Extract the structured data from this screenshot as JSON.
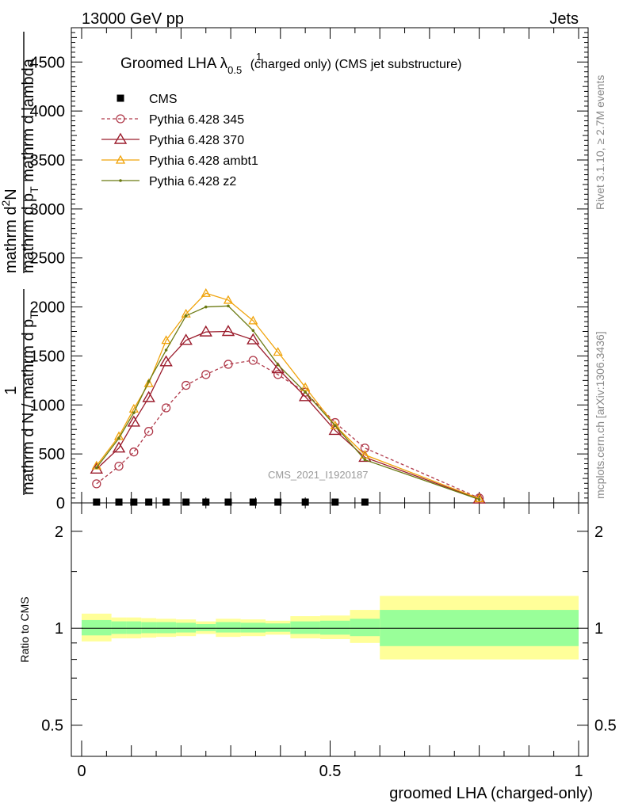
{
  "header": {
    "left": "13000 GeV pp",
    "right": "Jets"
  },
  "side_labels": {
    "rivet": "Rivet 3.1.10, ≥ 2.7M events",
    "mcplots": "mcplots.cern.ch [arXiv:1306.3436]"
  },
  "watermark": "CMS_2021_I1920187",
  "plot_title": {
    "main": "Groomed LHA λ",
    "sup": "1",
    "sub": "0.5",
    "rest": " (charged only) (CMS jet substructure)"
  },
  "y_axis_label": {
    "fraction_top": "1",
    "fraction_bottom": "mathrm d N / mathrm d p",
    "fraction_bottom_sub": "T",
    "numerator": "mathrm d",
    "numerator_sup": "2",
    "numerator_rest": "N",
    "denominator": "mathrm d p",
    "denominator_sub": "T",
    "denominator_rest": " mathrm d lambda"
  },
  "ratio_ylabel": "Ratio to CMS",
  "xlabel": "groomed LHA (charged-only)",
  "colors": {
    "cms": "#000000",
    "p345": "#b03a4a",
    "p370": "#9b1c2c",
    "ambt1": "#f0a30a",
    "z2": "#6b7a12",
    "band_inner": "#99ff99",
    "band_outer": "#ffff99"
  },
  "chart_data": {
    "type": "line",
    "main_panel": {
      "xlim": [
        -0.02,
        1.02
      ],
      "ylim": [
        0,
        4850
      ],
      "y_ticks": [
        0,
        500,
        1000,
        1500,
        2000,
        2500,
        3000,
        3500,
        4000,
        4500
      ],
      "y_tick_labels": [
        "0",
        "500",
        "1000",
        "1500",
        "2000",
        "2500",
        "3000",
        "3500",
        "4000",
        "4500"
      ],
      "legend_position": "top-left",
      "series": [
        {
          "name": "CMS",
          "marker": "square",
          "x": [
            0.03,
            0.075,
            0.105,
            0.135,
            0.17,
            0.21,
            0.25,
            0.295,
            0.345,
            0.395,
            0.45,
            0.51,
            0.57
          ],
          "y": [
            0,
            0,
            0,
            0,
            0,
            0,
            0,
            0,
            0,
            0,
            0,
            0,
            0
          ]
        },
        {
          "name": "Pythia 6.428 345",
          "marker": "open-circle",
          "dashed": true,
          "x": [
            0.03,
            0.075,
            0.105,
            0.135,
            0.17,
            0.21,
            0.25,
            0.295,
            0.345,
            0.395,
            0.45,
            0.51,
            0.57,
            0.8
          ],
          "y": [
            195,
            375,
            520,
            730,
            970,
            1200,
            1310,
            1415,
            1455,
            1310,
            1130,
            820,
            560,
            50
          ]
        },
        {
          "name": "Pythia 6.428 370",
          "marker": "open-triangle",
          "x": [
            0.03,
            0.075,
            0.105,
            0.135,
            0.17,
            0.21,
            0.25,
            0.295,
            0.345,
            0.395,
            0.45,
            0.51,
            0.57,
            0.8
          ],
          "y": [
            345,
            560,
            825,
            1075,
            1440,
            1660,
            1745,
            1750,
            1665,
            1370,
            1085,
            740,
            465,
            40
          ]
        },
        {
          "name": "Pythia 6.428 ambt1",
          "marker": "open-triangle-small",
          "x": [
            0.03,
            0.075,
            0.105,
            0.135,
            0.17,
            0.21,
            0.25,
            0.295,
            0.345,
            0.395,
            0.45,
            0.51,
            0.57,
            0.8
          ],
          "y": [
            380,
            680,
            960,
            1220,
            1660,
            1930,
            2140,
            2070,
            1860,
            1540,
            1180,
            790,
            490,
            45
          ]
        },
        {
          "name": "Pythia 6.428 z2",
          "marker": "dot",
          "x": [
            0.03,
            0.075,
            0.105,
            0.135,
            0.17,
            0.21,
            0.25,
            0.295,
            0.345,
            0.395,
            0.45,
            0.51,
            0.57,
            0.8
          ],
          "y": [
            360,
            660,
            920,
            1240,
            1560,
            1910,
            2000,
            2010,
            1760,
            1410,
            1130,
            790,
            440,
            35
          ]
        }
      ]
    },
    "ratio_panel": {
      "ylabel": "Ratio to CMS",
      "log_scale": true,
      "ylim": [
        0.4,
        2.45
      ],
      "y_ticks": [
        0.5,
        1,
        2
      ],
      "y_tick_labels": [
        "0.5",
        "1",
        "2"
      ],
      "x_ticks": [
        0,
        0.5,
        1
      ],
      "x_tick_labels": [
        "0",
        "0.5",
        "1"
      ],
      "bins": [
        {
          "x0": 0.0,
          "x1": 0.06,
          "inner": [
            0.95,
            1.06
          ],
          "outer": [
            0.91,
            1.11
          ]
        },
        {
          "x0": 0.06,
          "x1": 0.09,
          "inner": [
            0.96,
            1.05
          ],
          "outer": [
            0.93,
            1.08
          ]
        },
        {
          "x0": 0.09,
          "x1": 0.12,
          "inner": [
            0.96,
            1.05
          ],
          "outer": [
            0.93,
            1.08
          ]
        },
        {
          "x0": 0.12,
          "x1": 0.15,
          "inner": [
            0.965,
            1.045
          ],
          "outer": [
            0.935,
            1.075
          ]
        },
        {
          "x0": 0.15,
          "x1": 0.19,
          "inner": [
            0.965,
            1.045
          ],
          "outer": [
            0.94,
            1.07
          ]
        },
        {
          "x0": 0.19,
          "x1": 0.23,
          "inner": [
            0.97,
            1.04
          ],
          "outer": [
            0.945,
            1.065
          ]
        },
        {
          "x0": 0.23,
          "x1": 0.27,
          "inner": [
            0.98,
            1.03
          ],
          "outer": [
            0.96,
            1.05
          ]
        },
        {
          "x0": 0.27,
          "x1": 0.32,
          "inner": [
            0.97,
            1.045
          ],
          "outer": [
            0.94,
            1.07
          ]
        },
        {
          "x0": 0.32,
          "x1": 0.37,
          "inner": [
            0.97,
            1.04
          ],
          "outer": [
            0.945,
            1.065
          ]
        },
        {
          "x0": 0.37,
          "x1": 0.42,
          "inner": [
            0.975,
            1.035
          ],
          "outer": [
            0.955,
            1.055
          ]
        },
        {
          "x0": 0.42,
          "x1": 0.48,
          "inner": [
            0.96,
            1.05
          ],
          "outer": [
            0.93,
            1.09
          ]
        },
        {
          "x0": 0.48,
          "x1": 0.54,
          "inner": [
            0.955,
            1.055
          ],
          "outer": [
            0.925,
            1.095
          ]
        },
        {
          "x0": 0.54,
          "x1": 0.6,
          "inner": [
            0.945,
            1.07
          ],
          "outer": [
            0.9,
            1.14
          ]
        },
        {
          "x0": 0.6,
          "x1": 1.0,
          "inner": [
            0.88,
            1.14
          ],
          "outer": [
            0.8,
            1.26
          ]
        }
      ]
    }
  }
}
